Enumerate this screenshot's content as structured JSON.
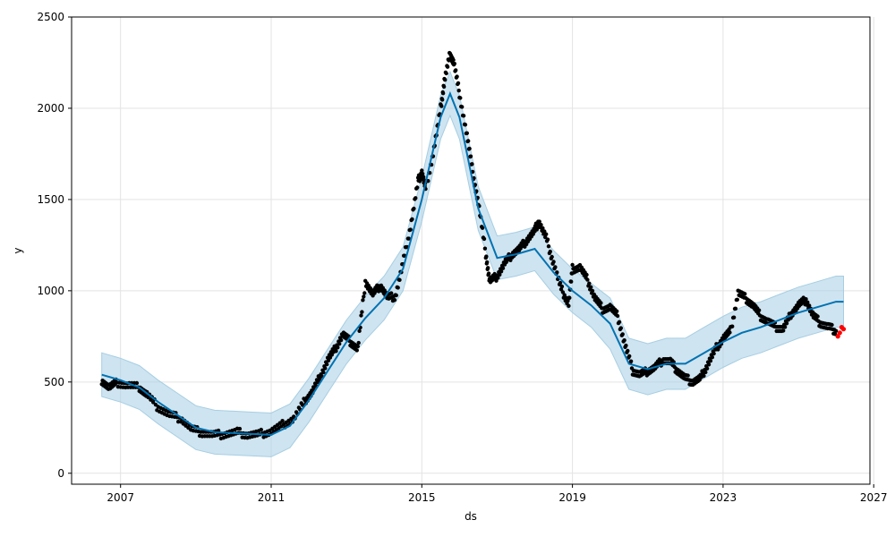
{
  "chart_data": {
    "type": "scatter",
    "xlabel": "ds",
    "ylabel": "y",
    "xlim": [
      2005.7,
      2026.9
    ],
    "ylim": [
      -60,
      2500
    ],
    "x_ticks": [
      2007,
      2011,
      2015,
      2019,
      2023,
      2027
    ],
    "y_ticks": [
      0,
      500,
      1000,
      1500,
      2000,
      2500
    ],
    "grid": true,
    "colors": {
      "observed": "#000000",
      "forecast": "#0072B2",
      "interval": "#A6CEE3",
      "recent": "#FF0000"
    },
    "series": [
      {
        "points": [
          [
            2006.5,
            510
          ],
          [
            2006.7,
            470
          ],
          [
            2006.9,
            495
          ],
          [
            2007.2,
            480
          ],
          [
            2007.5,
            470
          ],
          [
            2007.7,
            430
          ],
          [
            2008.0,
            360
          ],
          [
            2008.3,
            320
          ],
          [
            2008.6,
            300
          ],
          [
            2008.9,
            240
          ],
          [
            2009.2,
            220
          ],
          [
            2009.5,
            210
          ],
          [
            2009.8,
            215
          ],
          [
            2010.1,
            225
          ],
          [
            2010.4,
            210
          ],
          [
            2010.7,
            215
          ],
          [
            2011.0,
            230
          ],
          [
            2011.3,
            265
          ],
          [
            2011.6,
            300
          ],
          [
            2011.9,
            400
          ],
          [
            2012.1,
            450
          ],
          [
            2012.3,
            530
          ],
          [
            2012.5,
            620
          ],
          [
            2012.7,
            680
          ],
          [
            2012.9,
            760
          ],
          [
            2013.1,
            720
          ],
          [
            2013.3,
            680
          ],
          [
            2013.5,
            1050
          ],
          [
            2013.7,
            980
          ],
          [
            2013.9,
            1030
          ],
          [
            2014.1,
            960
          ],
          [
            2014.3,
            970
          ],
          [
            2014.5,
            1150
          ],
          [
            2014.7,
            1350
          ],
          [
            2014.9,
            1600
          ],
          [
            2015.0,
            1650
          ],
          [
            2015.1,
            1560
          ],
          [
            2015.3,
            1750
          ],
          [
            2015.5,
            2000
          ],
          [
            2015.6,
            2150
          ],
          [
            2015.75,
            2300
          ],
          [
            2015.85,
            2250
          ],
          [
            2016.0,
            2080
          ],
          [
            2016.2,
            1850
          ],
          [
            2016.35,
            1650
          ],
          [
            2016.5,
            1480
          ],
          [
            2016.7,
            1200
          ],
          [
            2016.8,
            1050
          ],
          [
            2017.0,
            1080
          ],
          [
            2017.2,
            1150
          ],
          [
            2017.4,
            1200
          ],
          [
            2017.6,
            1230
          ],
          [
            2017.8,
            1280
          ],
          [
            2018.0,
            1330
          ],
          [
            2018.1,
            1380
          ],
          [
            2018.3,
            1290
          ],
          [
            2018.5,
            1150
          ],
          [
            2018.7,
            1010
          ],
          [
            2018.9,
            930
          ],
          [
            2019.0,
            1120
          ],
          [
            2019.2,
            1130
          ],
          [
            2019.4,
            1060
          ],
          [
            2019.6,
            960
          ],
          [
            2019.8,
            900
          ],
          [
            2020.0,
            910
          ],
          [
            2020.2,
            860
          ],
          [
            2020.4,
            700
          ],
          [
            2020.6,
            560
          ],
          [
            2020.8,
            540
          ],
          [
            2021.0,
            560
          ],
          [
            2021.2,
            580
          ],
          [
            2021.4,
            620
          ],
          [
            2021.6,
            610
          ],
          [
            2021.8,
            560
          ],
          [
            2022.0,
            520
          ],
          [
            2022.2,
            500
          ],
          [
            2022.4,
            520
          ],
          [
            2022.6,
            600
          ],
          [
            2022.8,
            680
          ],
          [
            2023.0,
            740
          ],
          [
            2023.2,
            780
          ],
          [
            2023.4,
            990
          ],
          [
            2023.6,
            960
          ],
          [
            2023.8,
            920
          ],
          [
            2024.0,
            860
          ],
          [
            2024.2,
            830
          ],
          [
            2024.4,
            800
          ],
          [
            2024.6,
            790
          ],
          [
            2024.8,
            870
          ],
          [
            2025.0,
            920
          ],
          [
            2025.2,
            950
          ],
          [
            2025.4,
            860
          ],
          [
            2025.6,
            820
          ],
          [
            2025.8,
            800
          ],
          [
            2026.0,
            780
          ]
        ]
      },
      {
        "points": [
          [
            2026.05,
            750
          ],
          [
            2026.1,
            770
          ],
          [
            2026.15,
            800
          ],
          [
            2026.2,
            790
          ]
        ]
      },
      {
        "points": [
          [
            2006.5,
            540
          ],
          [
            2007.0,
            510
          ],
          [
            2007.5,
            470
          ],
          [
            2008.0,
            390
          ],
          [
            2008.5,
            320
          ],
          [
            2009.0,
            250
          ],
          [
            2009.5,
            225
          ],
          [
            2010.0,
            220
          ],
          [
            2010.5,
            215
          ],
          [
            2011.0,
            210
          ],
          [
            2011.5,
            260
          ],
          [
            2012.0,
            400
          ],
          [
            2012.5,
            560
          ],
          [
            2013.0,
            720
          ],
          [
            2013.5,
            850
          ],
          [
            2014.0,
            960
          ],
          [
            2014.5,
            1120
          ],
          [
            2015.0,
            1500
          ],
          [
            2015.5,
            1950
          ],
          [
            2015.75,
            2080
          ],
          [
            2016.0,
            1950
          ],
          [
            2016.5,
            1450
          ],
          [
            2017.0,
            1180
          ],
          [
            2017.5,
            1200
          ],
          [
            2018.0,
            1230
          ],
          [
            2018.5,
            1100
          ],
          [
            2019.0,
            1000
          ],
          [
            2019.5,
            920
          ],
          [
            2020.0,
            820
          ],
          [
            2020.5,
            600
          ],
          [
            2021.0,
            570
          ],
          [
            2021.5,
            600
          ],
          [
            2022.0,
            600
          ],
          [
            2022.5,
            660
          ],
          [
            2023.0,
            720
          ],
          [
            2023.5,
            770
          ],
          [
            2024.0,
            800
          ],
          [
            2024.5,
            840
          ],
          [
            2025.0,
            880
          ],
          [
            2025.5,
            910
          ],
          [
            2026.0,
            940
          ],
          [
            2026.2,
            940
          ]
        ]
      }
    ]
  }
}
